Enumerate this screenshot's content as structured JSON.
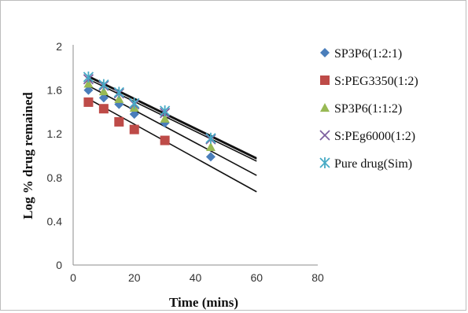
{
  "chart_data": {
    "type": "scatter",
    "title": "",
    "xlabel": "Time (mins)",
    "ylabel": "Log % drug remained",
    "xlim": [
      0,
      80
    ],
    "ylim": [
      0,
      2
    ],
    "xticks": [
      0,
      20,
      40,
      60,
      80
    ],
    "yticks": [
      0,
      0.4,
      0.8,
      1.2,
      1.6,
      2
    ],
    "ytick_labels": [
      "0",
      "0.4",
      "0.8",
      "1.2",
      "1.6",
      "2"
    ],
    "grid": false,
    "legend_position": "right",
    "trendlines": "linear",
    "series": [
      {
        "name": "SP3P6(1:2:1)",
        "marker": "diamond",
        "color": "#4a7ebb",
        "x": [
          5,
          10,
          15,
          20,
          30,
          45
        ],
        "y": [
          1.6,
          1.53,
          1.47,
          1.38,
          1.3,
          0.99
        ],
        "trend": {
          "from": [
            5,
            1.7
          ],
          "to": [
            60,
            0.95
          ]
        }
      },
      {
        "name": "S:PEG3350(1:2)",
        "marker": "square",
        "color": "#be4b48",
        "x": [
          5,
          10,
          15,
          20,
          30
        ],
        "y": [
          1.49,
          1.43,
          1.31,
          1.24,
          1.14
        ],
        "trend": {
          "from": [
            5,
            1.52
          ],
          "to": [
            60,
            0.67
          ]
        }
      },
      {
        "name": "SP3P6(1:1:2)",
        "marker": "triangle",
        "color": "#98b954",
        "x": [
          5,
          10,
          15,
          20,
          30,
          45
        ],
        "y": [
          1.66,
          1.59,
          1.52,
          1.44,
          1.34,
          1.08
        ],
        "trend": {
          "from": [
            5,
            1.64
          ],
          "to": [
            60,
            0.82
          ]
        }
      },
      {
        "name": "S:PEg6000(1:2)",
        "marker": "x",
        "color": "#7d60a0",
        "x": [
          5,
          10,
          15,
          20,
          30,
          45
        ],
        "y": [
          1.7,
          1.64,
          1.57,
          1.47,
          1.39,
          1.15
        ],
        "trend": {
          "from": [
            5,
            1.72
          ],
          "to": [
            60,
            0.97
          ]
        }
      },
      {
        "name": "Pure drug(Sim)",
        "marker": "asterisk",
        "color": "#46aac5",
        "x": [
          5,
          10,
          15,
          20,
          30,
          45
        ],
        "y": [
          1.72,
          1.65,
          1.58,
          1.48,
          1.41,
          1.16
        ],
        "trend": {
          "from": [
            5,
            1.73
          ],
          "to": [
            60,
            0.98
          ]
        }
      }
    ]
  }
}
